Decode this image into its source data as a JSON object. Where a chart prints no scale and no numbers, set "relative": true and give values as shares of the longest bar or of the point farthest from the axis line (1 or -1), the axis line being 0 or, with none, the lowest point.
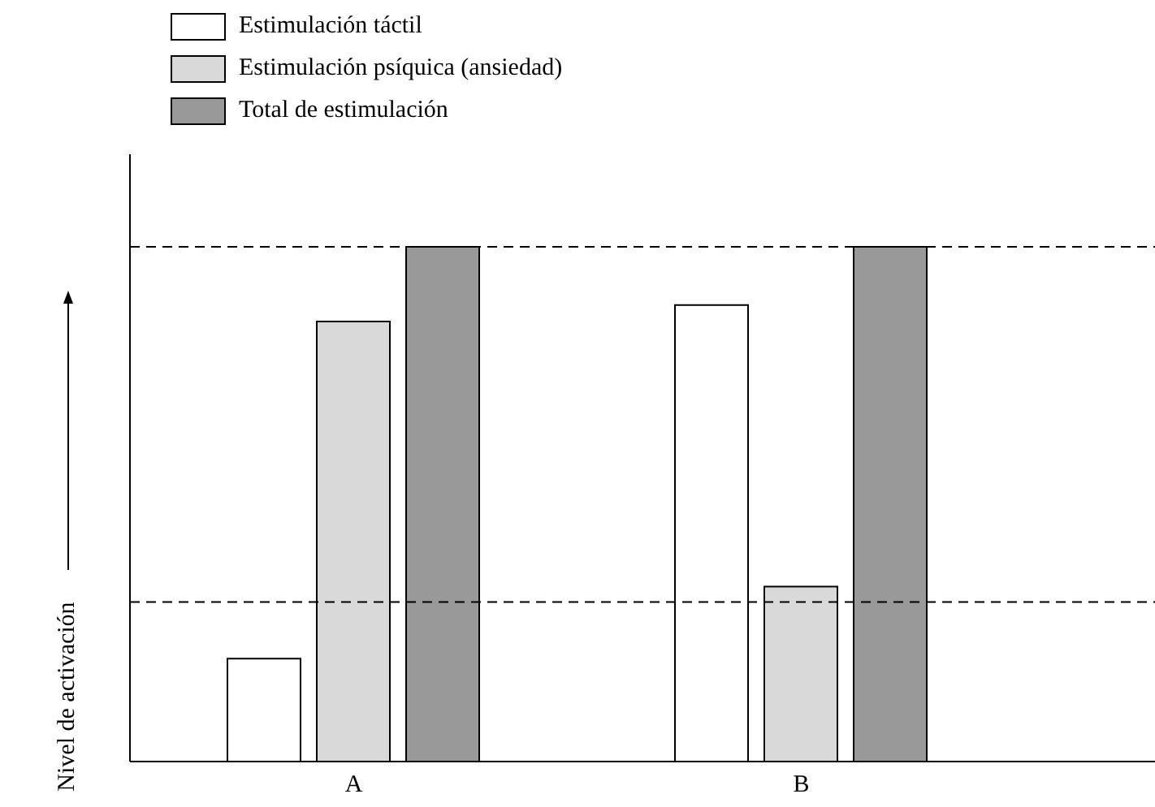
{
  "chart_data": {
    "type": "bar",
    "ylabel": "Nivel de activación",
    "categories": [
      "A",
      "B"
    ],
    "relative": true,
    "legend": "top left",
    "series": [
      {
        "name": "Estimulación táctil",
        "color": "#ffffff",
        "values": [
          0.2,
          0.887
        ]
      },
      {
        "name": "Estimulación psíquica (ansiedad)",
        "color": "#d9d9d9",
        "values": [
          0.855,
          0.34
        ]
      },
      {
        "name": "Total de estimulación",
        "color": "#999999",
        "values": [
          1,
          1
        ]
      }
    ],
    "ref_lines": [
      {
        "axis": "y",
        "value": 1,
        "line_style": "dashed",
        "color": "#000000"
      },
      {
        "axis": "y",
        "value": 0.31,
        "line_style": "dashed",
        "color": "#000000"
      }
    ]
  }
}
